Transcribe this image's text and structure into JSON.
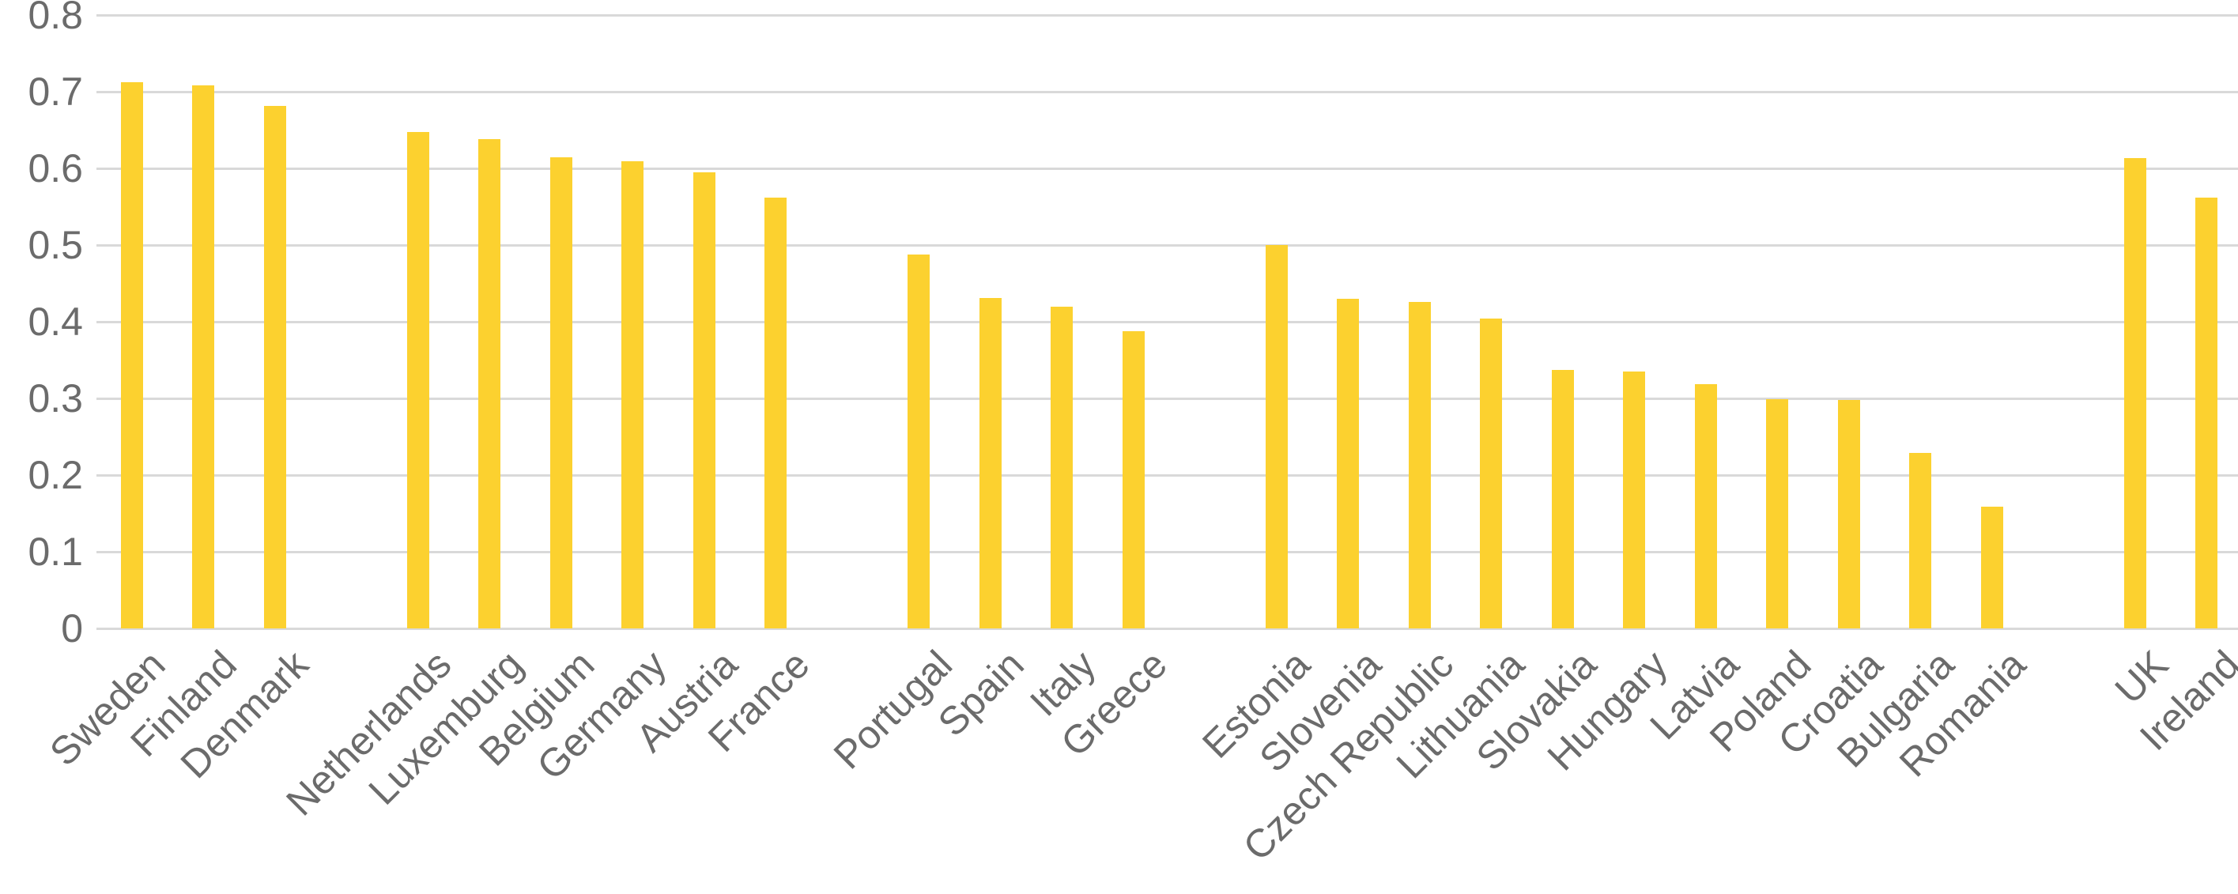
{
  "chart_data": {
    "type": "bar",
    "title": "",
    "xlabel": "",
    "ylabel": "",
    "ylim": [
      0,
      0.8
    ],
    "grid": true,
    "legend": false,
    "bar_color": "#FCD12F",
    "grid_color": "#D9D9D9",
    "text_color": "#6B6B6B",
    "yticks": [
      {
        "label": "0.8",
        "value": 0.8
      },
      {
        "label": "0.7",
        "value": 0.7
      },
      {
        "label": "0.6",
        "value": 0.6
      },
      {
        "label": "0.5",
        "value": 0.5
      },
      {
        "label": "0.4",
        "value": 0.4
      },
      {
        "label": "0.3",
        "value": 0.3
      },
      {
        "label": "0.2",
        "value": 0.2
      },
      {
        "label": "0.1",
        "value": 0.1
      },
      {
        "label": "0",
        "value": 0.0
      }
    ],
    "groups": [
      {
        "items": [
          {
            "label": "Sweden",
            "value": 0.712
          },
          {
            "label": "Finland",
            "value": 0.708
          },
          {
            "label": "Denmark",
            "value": 0.681
          }
        ]
      },
      {
        "items": [
          {
            "label": "Netherlands",
            "value": 0.647
          },
          {
            "label": "Luxemburg",
            "value": 0.638
          },
          {
            "label": "Belgium",
            "value": 0.614
          },
          {
            "label": "Germany",
            "value": 0.609
          },
          {
            "label": "Austria",
            "value": 0.595
          },
          {
            "label": "France",
            "value": 0.562
          }
        ]
      },
      {
        "items": [
          {
            "label": "Portugal",
            "value": 0.488
          },
          {
            "label": "Spain",
            "value": 0.431
          },
          {
            "label": "Italy",
            "value": 0.42
          },
          {
            "label": "Greece",
            "value": 0.388
          }
        ]
      },
      {
        "items": [
          {
            "label": "Estonia",
            "value": 0.5
          },
          {
            "label": "Slovenia",
            "value": 0.43
          },
          {
            "label": "Czech Republic",
            "value": 0.426
          },
          {
            "label": "Lithuania",
            "value": 0.404
          },
          {
            "label": "Slovakia",
            "value": 0.337
          },
          {
            "label": "Hungary",
            "value": 0.335
          },
          {
            "label": "Latvia",
            "value": 0.319
          },
          {
            "label": "Poland",
            "value": 0.299
          },
          {
            "label": "Croatia",
            "value": 0.298
          },
          {
            "label": "Bulgaria",
            "value": 0.229
          },
          {
            "label": "Romania",
            "value": 0.159
          }
        ]
      },
      {
        "items": [
          {
            "label": "UK",
            "value": 0.613
          },
          {
            "label": "Ireland",
            "value": 0.562
          }
        ]
      }
    ]
  }
}
